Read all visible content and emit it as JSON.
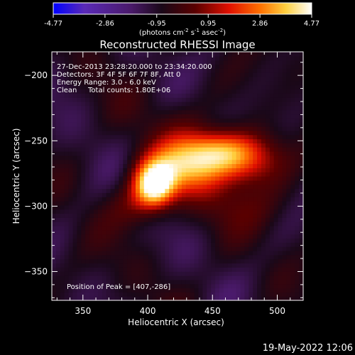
{
  "colorbar": {
    "ticks": [
      "-4.77",
      "-2.86",
      "-0.95",
      "0.95",
      "2.86",
      "4.77"
    ],
    "tick_values": [
      -4.77,
      -2.86,
      -0.95,
      0.95,
      2.86,
      4.77
    ],
    "range": [
      -4.77,
      4.77
    ],
    "units_main": "(photons cm",
    "units_exp1": "-2",
    "units_mid": " s",
    "units_exp2": "-1",
    "units_tail": " asec",
    "units_exp3": "-2",
    "units_close": ")",
    "colors": [
      "#0000ff",
      "#8040a0",
      "#4a1a6a",
      "#000000",
      "#a00000",
      "#ff3000",
      "#ffa000",
      "#ffff80",
      "#ffffff"
    ]
  },
  "chart_data": {
    "type": "heatmap",
    "title": "Reconstructed RHESSI Image",
    "xlabel": "Heliocentric X (arcsec)",
    "ylabel": "Heliocentric Y (arcsec)",
    "xlim": [
      326,
      520
    ],
    "ylim": [
      -372,
      -182
    ],
    "xticks": [
      350,
      400,
      450,
      500
    ],
    "yticks": [
      -200,
      -250,
      -300,
      -350
    ],
    "xtick_labels": [
      "350",
      "400",
      "450",
      "500"
    ],
    "ytick_labels": [
      "−200",
      "−250",
      "−300",
      "−350"
    ],
    "background_level": -0.95,
    "sources": [
      {
        "x": 405,
        "y": -284,
        "amp": 5.6,
        "sx": 11,
        "sy": 12
      },
      {
        "x": 428,
        "y": -270,
        "amp": 3.6,
        "sx": 22,
        "sy": 15
      },
      {
        "x": 455,
        "y": -258,
        "amp": 3.4,
        "sx": 20,
        "sy": 12
      },
      {
        "x": 480,
        "y": -265,
        "amp": 2.2,
        "sx": 18,
        "sy": 14
      },
      {
        "x": 390,
        "y": -300,
        "amp": 1.2,
        "sx": 14,
        "sy": 12
      },
      {
        "x": 472,
        "y": -300,
        "amp": 0.8,
        "sx": 28,
        "sy": 14
      },
      {
        "x": 420,
        "y": -232,
        "amp": 0.5,
        "sx": 18,
        "sy": 14
      }
    ],
    "annotations": [
      "27-Dec-2013 23:28:20.000 to 23:34:20.000",
      "Detectors: 3F 4F 5F 6F 7F 8F, Att 0",
      "Energy Range: 3.0 - 6.0 keV",
      "Clean",
      "Total counts: 1.80E+06"
    ],
    "peak_label": "Position of Peak = [407,-286]",
    "peak": [
      407,
      -286
    ]
  },
  "footer": {
    "timestamp": "19-May-2022 12:06"
  }
}
